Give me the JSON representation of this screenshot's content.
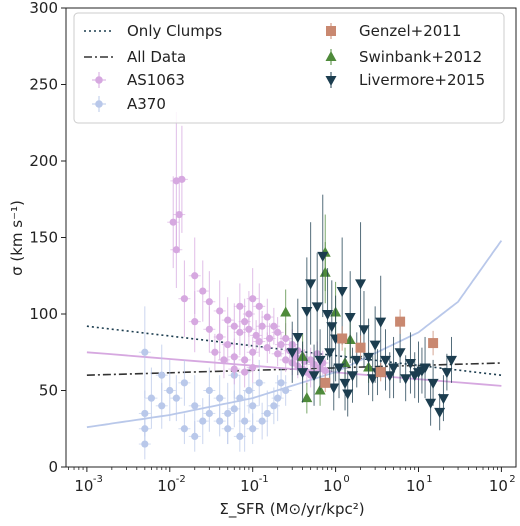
{
  "chart_data": {
    "type": "scatter",
    "xscale": "log",
    "xlim": [
      0.00056,
      150
    ],
    "ylim": [
      0,
      300
    ],
    "xlabel": "Σ_SFR (M⊙/yr/kpc²)",
    "ylabel": "σ (km s⁻¹)",
    "x_ticks": [
      {
        "value": 0.001,
        "label": "10",
        "exp": "-3"
      },
      {
        "value": 0.01,
        "label": "10",
        "exp": "-2"
      },
      {
        "value": 0.1,
        "label": "10",
        "exp": "-1"
      },
      {
        "value": 1,
        "label": "10",
        "exp": "0"
      },
      {
        "value": 10,
        "label": "10",
        "exp": "1"
      },
      {
        "value": 100,
        "label": "10",
        "exp": "2"
      }
    ],
    "y_ticks": [
      0,
      50,
      100,
      150,
      200,
      250,
      300
    ],
    "legend_position": "top",
    "colors": {
      "AS1063": "#d6a8e0",
      "A370": "#b9c8ea",
      "Genzel+2011": "#c98870",
      "Swinbank+2012": "#4e8a3a",
      "Livermore+2015": "#1c3d4f",
      "fit_AS1063": "#d6a8e0",
      "fit_A370": "#b9c8ea",
      "Only Clumps": "#1c3d4f",
      "All Data": "#333333"
    },
    "legend": [
      {
        "label": "Only Clumps",
        "kind": "dotted-line",
        "color_key": "Only Clumps"
      },
      {
        "label": "All Data",
        "kind": "dashdot-line",
        "color_key": "All Data"
      },
      {
        "label": "AS1063",
        "kind": "circle",
        "color_key": "AS1063"
      },
      {
        "label": "A370",
        "kind": "circle",
        "color_key": "A370"
      },
      {
        "label": "Genzel+2011",
        "kind": "square",
        "color_key": "Genzel+2011"
      },
      {
        "label": "Swinbank+2012",
        "kind": "triangle-up",
        "color_key": "Swinbank+2012"
      },
      {
        "label": "Livermore+2015",
        "kind": "triangle-down",
        "color_key": "Livermore+2015"
      }
    ],
    "lines": [
      {
        "name": "Only Clumps",
        "style": "dotted",
        "x": [
          0.001,
          100
        ],
        "y": [
          92,
          60
        ]
      },
      {
        "name": "All Data",
        "style": "dashdot",
        "x": [
          0.001,
          100
        ],
        "y": [
          60,
          68
        ]
      },
      {
        "name": "fit_AS1063",
        "style": "solid",
        "x": [
          0.001,
          100
        ],
        "y": [
          75,
          53
        ]
      },
      {
        "name": "fit_A370",
        "style": "solid",
        "x": [
          0.001,
          0.01,
          0.1,
          1,
          10,
          30,
          100
        ],
        "y": [
          26,
          34,
          45,
          62,
          88,
          108,
          148
        ]
      }
    ],
    "series": [
      {
        "name": "AS1063",
        "marker": "circle",
        "points": [
          [
            0.012,
            187,
            45
          ],
          [
            0.014,
            188,
            35
          ],
          [
            0.011,
            160,
            30
          ],
          [
            0.013,
            165,
            25
          ],
          [
            0.012,
            142,
            25
          ],
          [
            0.02,
            125,
            25
          ],
          [
            0.025,
            115,
            20
          ],
          [
            0.03,
            108,
            20
          ],
          [
            0.04,
            102,
            20
          ],
          [
            0.05,
            96,
            15
          ],
          [
            0.06,
            92,
            15
          ],
          [
            0.07,
            88,
            15
          ],
          [
            0.08,
            95,
            15
          ],
          [
            0.09,
            100,
            15
          ],
          [
            0.1,
            110,
            20
          ],
          [
            0.12,
            105,
            15
          ],
          [
            0.15,
            98,
            12
          ],
          [
            0.18,
            92,
            12
          ],
          [
            0.2,
            88,
            10
          ],
          [
            0.25,
            84,
            10
          ],
          [
            0.3,
            80,
            10
          ],
          [
            0.35,
            76,
            10
          ],
          [
            0.4,
            72,
            8
          ],
          [
            0.5,
            70,
            8
          ],
          [
            0.6,
            74,
            8
          ],
          [
            0.7,
            68,
            8
          ],
          [
            0.05,
            80,
            12
          ],
          [
            0.06,
            72,
            12
          ],
          [
            0.08,
            70,
            10
          ],
          [
            0.1,
            75,
            10
          ],
          [
            0.12,
            82,
            10
          ],
          [
            0.15,
            78,
            10
          ],
          [
            0.2,
            74,
            8
          ],
          [
            0.25,
            70,
            8
          ],
          [
            0.3,
            68,
            8
          ],
          [
            0.35,
            66,
            8
          ],
          [
            0.4,
            64,
            8
          ],
          [
            0.45,
            62,
            8
          ],
          [
            0.03,
            90,
            15
          ],
          [
            0.04,
            85,
            15
          ],
          [
            0.02,
            95,
            20
          ],
          [
            0.015,
            110,
            25
          ],
          [
            0.07,
            105,
            15
          ],
          [
            0.09,
            90,
            12
          ],
          [
            0.11,
            86,
            10
          ],
          [
            0.13,
            92,
            10
          ],
          [
            0.16,
            84,
            10
          ],
          [
            0.22,
            80,
            8
          ],
          [
            0.28,
            76,
            8
          ],
          [
            0.33,
            72,
            8
          ],
          [
            0.42,
            69,
            8
          ],
          [
            0.55,
            67,
            8
          ],
          [
            0.65,
            65,
            8
          ],
          [
            0.75,
            63,
            8
          ],
          [
            0.5,
            60,
            8
          ],
          [
            0.1,
            65,
            10
          ],
          [
            0.08,
            62,
            10
          ],
          [
            0.06,
            64,
            10
          ],
          [
            0.045,
            70,
            12
          ],
          [
            0.035,
            75,
            12
          ]
        ]
      },
      {
        "name": "A370",
        "marker": "circle",
        "points": [
          [
            0.005,
            75,
            30
          ],
          [
            0.005,
            35,
            15
          ],
          [
            0.005,
            25,
            12
          ],
          [
            0.005,
            15,
            10
          ],
          [
            0.006,
            45,
            20
          ],
          [
            0.008,
            40,
            15
          ],
          [
            0.01,
            50,
            20
          ],
          [
            0.012,
            45,
            15
          ],
          [
            0.015,
            55,
            15
          ],
          [
            0.02,
            40,
            20
          ],
          [
            0.025,
            30,
            15
          ],
          [
            0.03,
            50,
            15
          ],
          [
            0.04,
            45,
            15
          ],
          [
            0.05,
            35,
            20
          ],
          [
            0.06,
            60,
            15
          ],
          [
            0.07,
            45,
            15
          ],
          [
            0.08,
            30,
            20
          ],
          [
            0.09,
            50,
            15
          ],
          [
            0.1,
            40,
            15
          ],
          [
            0.12,
            55,
            15
          ],
          [
            0.15,
            35,
            15
          ],
          [
            0.2,
            45,
            15
          ],
          [
            0.25,
            50,
            10
          ],
          [
            0.07,
            20,
            10
          ],
          [
            0.05,
            25,
            10
          ],
          [
            0.04,
            30,
            10
          ],
          [
            0.02,
            20,
            10
          ],
          [
            0.015,
            25,
            10
          ],
          [
            0.1,
            25,
            10
          ],
          [
            0.13,
            30,
            12
          ],
          [
            0.18,
            40,
            12
          ],
          [
            0.22,
            55,
            10
          ],
          [
            0.06,
            38,
            12
          ],
          [
            0.03,
            35,
            12
          ],
          [
            0.008,
            60,
            20
          ]
        ]
      },
      {
        "name": "Genzel+2011",
        "marker": "square",
        "points": [
          [
            0.75,
            55,
            6
          ],
          [
            1.2,
            84,
            8
          ],
          [
            2,
            78,
            8
          ],
          [
            3.5,
            62,
            6
          ],
          [
            6,
            95,
            8
          ],
          [
            15,
            81,
            8
          ]
        ]
      },
      {
        "name": "Swinbank+2012",
        "marker": "triangle-up",
        "points": [
          [
            0.25,
            101,
            15
          ],
          [
            0.4,
            72,
            15
          ],
          [
            0.45,
            45,
            10
          ],
          [
            0.65,
            50,
            10
          ],
          [
            0.75,
            140,
            25
          ],
          [
            0.75,
            127,
            20
          ],
          [
            1,
            101,
            20
          ],
          [
            1.3,
            68,
            10
          ],
          [
            1.5,
            83,
            12
          ],
          [
            2.5,
            65,
            10
          ]
        ]
      },
      {
        "name": "Livermore+2015",
        "marker": "triangle-down",
        "points": [
          [
            0.45,
            102,
            35
          ],
          [
            0.5,
            120,
            40
          ],
          [
            0.6,
            105,
            35
          ],
          [
            0.7,
            138,
            40
          ],
          [
            0.8,
            100,
            30
          ],
          [
            0.9,
            92,
            30
          ],
          [
            1,
            84,
            28
          ],
          [
            1.2,
            115,
            35
          ],
          [
            1.5,
            98,
            30
          ],
          [
            2,
            120,
            40
          ],
          [
            2.2,
            90,
            25
          ],
          [
            2.5,
            72,
            25
          ],
          [
            3,
            80,
            25
          ],
          [
            3.5,
            95,
            30
          ],
          [
            4,
            70,
            20
          ],
          [
            5,
            65,
            20
          ],
          [
            6,
            75,
            20
          ],
          [
            8,
            68,
            20
          ],
          [
            10,
            62,
            20
          ],
          [
            12,
            65,
            20
          ],
          [
            15,
            55,
            15
          ],
          [
            20,
            45,
            15
          ],
          [
            25,
            70,
            15
          ],
          [
            0.55,
            60,
            20
          ],
          [
            0.65,
            70,
            20
          ],
          [
            0.85,
            75,
            20
          ],
          [
            1.1,
            65,
            20
          ],
          [
            1.3,
            55,
            18
          ],
          [
            1.6,
            60,
            18
          ],
          [
            1.8,
            70,
            18
          ],
          [
            2.8,
            58,
            15
          ],
          [
            3.2,
            62,
            15
          ],
          [
            4.5,
            60,
            15
          ],
          [
            7,
            58,
            15
          ],
          [
            9,
            60,
            15
          ],
          [
            11,
            63,
            15
          ],
          [
            14,
            42,
            15
          ],
          [
            18,
            36,
            12
          ],
          [
            0.4,
            62,
            20
          ],
          [
            0.35,
            85,
            25
          ],
          [
            0.3,
            75,
            20
          ],
          [
            22,
            62,
            12
          ],
          [
            0.95,
            52,
            15
          ],
          [
            1.4,
            48,
            15
          ]
        ]
      }
    ]
  }
}
